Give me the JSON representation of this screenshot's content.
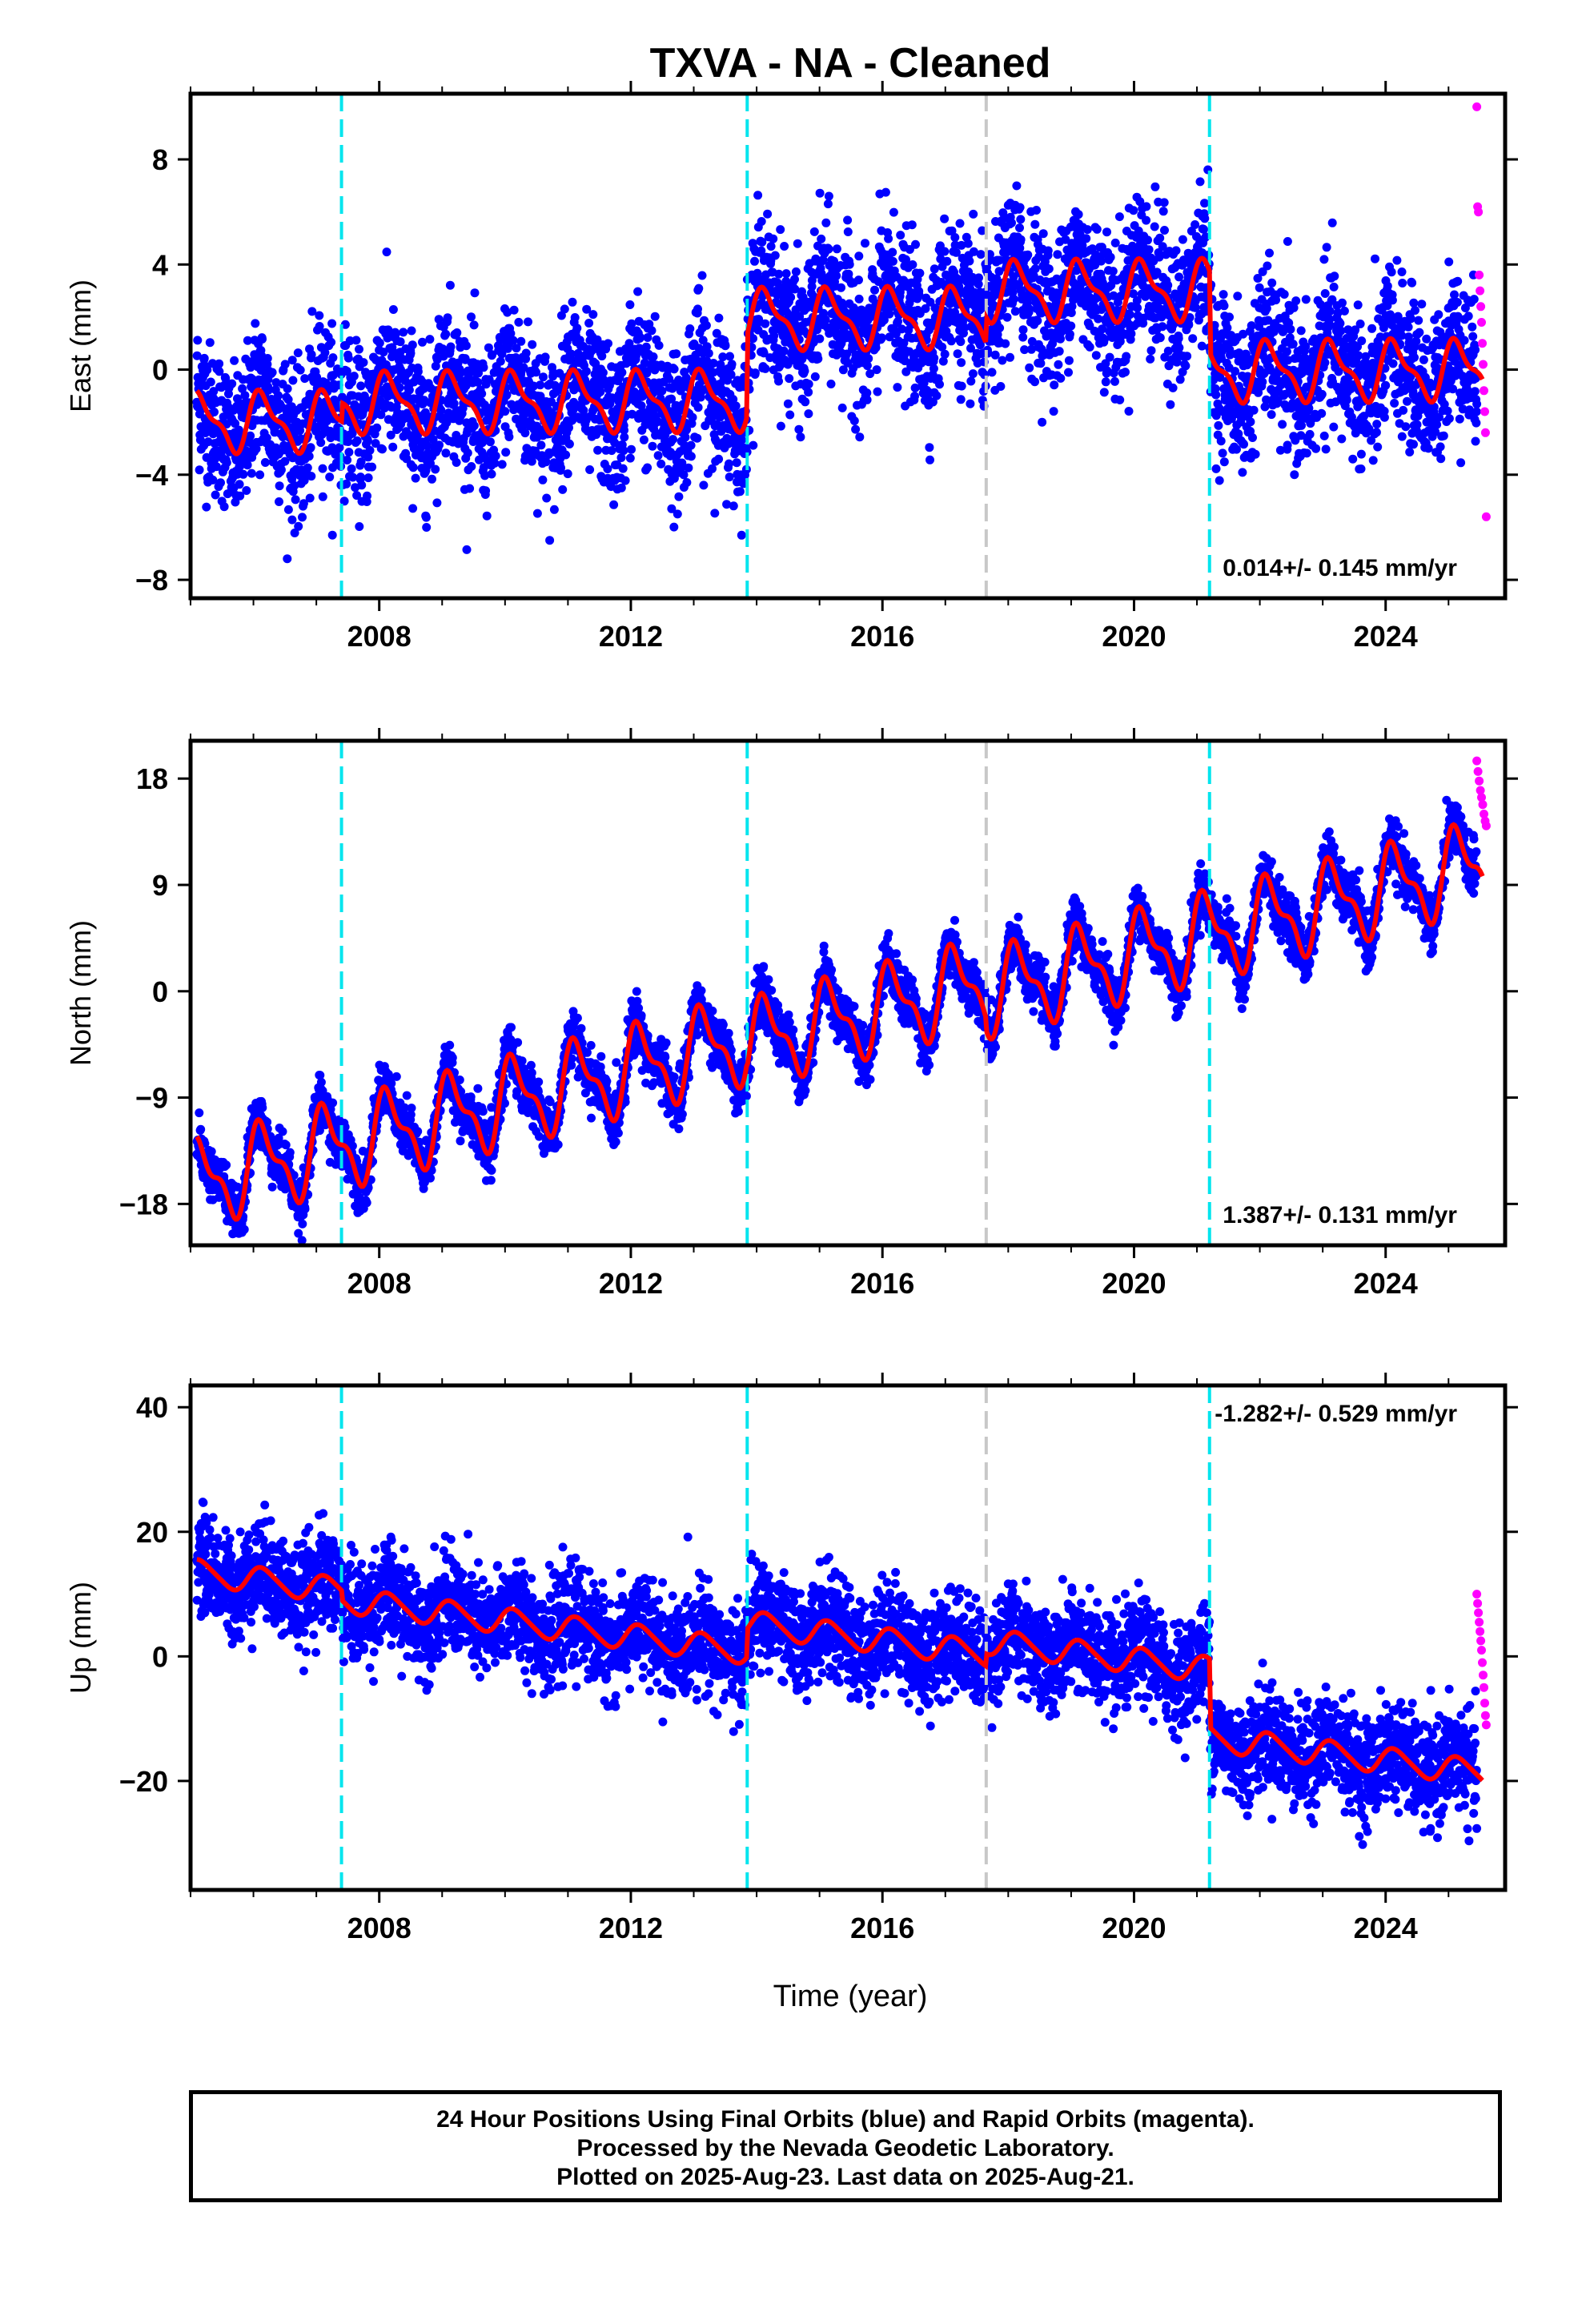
{
  "title": "TXVA  - NA - Cleaned",
  "footer": {
    "line1": "24 Hour Positions Using Final Orbits (blue) and Rapid Orbits (magenta).",
    "line2": "Processed by the Nevada Geodetic Laboratory.",
    "line3": "Plotted on 2025-Aug-23. Last data on 2025-Aug-21."
  },
  "colors": {
    "final_orbits": "#0000ff",
    "rapid_orbits": "#ff00ff",
    "model": "#ff0000",
    "equipment_change": "#00e5ee",
    "other_event": "#c8c8c8"
  },
  "chart_data": [
    {
      "type": "scatter",
      "name": "east",
      "ylabel": "East (mm)",
      "xlabel": "",
      "xlim": [
        2005.0,
        2025.9
      ],
      "ylim": [
        -8.7,
        10.5
      ],
      "xticks": [
        2008,
        2012,
        2016,
        2020,
        2024
      ],
      "yticks": [
        -8,
        -4,
        0,
        4,
        8
      ],
      "rate_label": "0.014+/- 0.145 mm/yr",
      "event_lines": [
        {
          "x": 2007.4,
          "color": "cyan"
        },
        {
          "x": 2013.85,
          "color": "cyan"
        },
        {
          "x": 2017.65,
          "color": "gray"
        },
        {
          "x": 2021.2,
          "color": "cyan"
        }
      ],
      "model": {
        "start": 2005.1,
        "end": 2025.55,
        "rate": 0.014,
        "annual_amp": 1.0,
        "semiannual_amp": 0.4,
        "segments": [
          {
            "x0": 2005.1,
            "x1": 2007.4,
            "offset": -2.0
          },
          {
            "x0": 2007.4,
            "x1": 2013.85,
            "offset": -1.3
          },
          {
            "x0": 2013.85,
            "x1": 2017.65,
            "offset": 1.8
          },
          {
            "x0": 2017.65,
            "x1": 2021.2,
            "offset": 2.8
          },
          {
            "x0": 2021.2,
            "x1": 2025.55,
            "offset": -0.3
          }
        ]
      },
      "final_points": {
        "start": 2005.1,
        "end": 2025.45,
        "scatter": 1.4
      },
      "rapid_points": {
        "start": 2025.45,
        "end": 2025.6,
        "y": [
          10,
          6.2,
          6.0,
          3.6,
          3.0,
          2.4,
          1.8,
          1.0,
          0.2,
          -0.8,
          -1.6,
          -2.4,
          -5.6
        ]
      }
    },
    {
      "type": "scatter",
      "name": "north",
      "ylabel": "North (mm)",
      "xlabel": "",
      "xlim": [
        2005.0,
        2025.9
      ],
      "ylim": [
        -21.5,
        21.2
      ],
      "xticks": [
        2008,
        2012,
        2016,
        2020,
        2024
      ],
      "yticks": [
        -18,
        -9,
        0,
        9,
        18
      ],
      "rate_label": "1.387+/- 0.131 mm/yr",
      "event_lines": [
        {
          "x": 2007.4,
          "color": "cyan"
        },
        {
          "x": 2013.85,
          "color": "cyan"
        },
        {
          "x": 2017.65,
          "color": "gray"
        },
        {
          "x": 2021.2,
          "color": "cyan"
        }
      ],
      "model": {
        "start": 2005.1,
        "end": 2025.55,
        "rate": 1.387,
        "annual_amp": 3.2,
        "semiannual_amp": 1.4,
        "segments": [
          {
            "x0": 2005.1,
            "x1": 2007.4,
            "offset": -16.2
          },
          {
            "x0": 2007.4,
            "x1": 2013.85,
            "offset": -16.2
          },
          {
            "x0": 2013.85,
            "x1": 2017.65,
            "offset": -16.6
          },
          {
            "x0": 2017.65,
            "x1": 2021.2,
            "offset": -17.6
          },
          {
            "x0": 2021.2,
            "x1": 2025.55,
            "offset": -17.6
          }
        ]
      },
      "final_points": {
        "start": 2005.1,
        "end": 2025.45,
        "scatter": 1.1
      },
      "rapid_points": {
        "start": 2025.45,
        "end": 2025.6,
        "y": [
          19.5,
          18.6,
          17.8,
          17.0,
          16.4,
          15.8,
          15.0,
          14.4,
          14.0
        ]
      }
    },
    {
      "type": "scatter",
      "name": "up",
      "ylabel": "Up (mm)",
      "xlabel": "Time (year)",
      "xlim": [
        2005.0,
        2025.9
      ],
      "ylim": [
        -37.5,
        43.5
      ],
      "xticks": [
        2008,
        2012,
        2016,
        2020,
        2024
      ],
      "yticks": [
        -20,
        0,
        20,
        40
      ],
      "rate_label": "-1.282+/- 0.529 mm/yr",
      "event_lines": [
        {
          "x": 2007.4,
          "color": "cyan"
        },
        {
          "x": 2013.85,
          "color": "cyan"
        },
        {
          "x": 2017.65,
          "color": "gray"
        },
        {
          "x": 2021.2,
          "color": "cyan"
        }
      ],
      "model": {
        "start": 2005.1,
        "end": 2025.55,
        "rate": -1.282,
        "annual_amp": 2.0,
        "semiannual_amp": 0.3,
        "segments": [
          {
            "x0": 2005.1,
            "x1": 2007.4,
            "offset": 13.5
          },
          {
            "x0": 2007.4,
            "x1": 2013.85,
            "offset": 12.0
          },
          {
            "x0": 2013.85,
            "x1": 2017.65,
            "offset": 16.5
          },
          {
            "x0": 2017.65,
            "x1": 2021.2,
            "offset": 18.5
          },
          {
            "x0": 2021.2,
            "x1": 2025.55,
            "offset": 7.5
          }
        ]
      },
      "final_points": {
        "start": 2005.1,
        "end": 2025.45,
        "scatter": 4.0
      },
      "rapid_points": {
        "start": 2025.45,
        "end": 2025.6,
        "y": [
          10,
          8.5,
          7.0,
          5.5,
          4.0,
          2.5,
          1.0,
          -1.0,
          -3.0,
          -5.0,
          -7.5,
          -9.5,
          -11.0
        ]
      }
    }
  ]
}
